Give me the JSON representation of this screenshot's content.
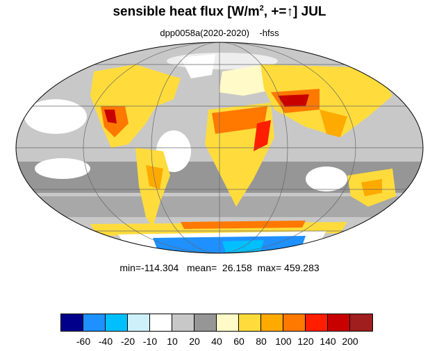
{
  "title": {
    "main": "sensible heat flux [W/m",
    "sup": "2",
    "rest": ", +=↑]  JUL"
  },
  "subtitle": "dpp0058a(2020-2020)    -hfss",
  "stats": "min=-114.304   mean=  26.158  max= 459.283",
  "colorbar": {
    "colors": [
      "#00008b",
      "#1e90ff",
      "#00bfff",
      "#cdf0fa",
      "#ffffff",
      "#c8c8c8",
      "#969696",
      "#fffac8",
      "#ffdc3c",
      "#ffaa00",
      "#ff7800",
      "#ff1e00",
      "#c80000",
      "#a01e1e"
    ],
    "labels": [
      "-60",
      "-40",
      "-20",
      "-10",
      "10",
      "20",
      "40",
      "60",
      "80",
      "100",
      "120",
      "140",
      "200"
    ]
  },
  "map": {
    "projection": "Mollweide",
    "ocean_color": "#c8c8c8",
    "land_hot_color": "#ffaa00",
    "hottest_color": "#ff1e00",
    "cold_color": "#1e90ff"
  }
}
